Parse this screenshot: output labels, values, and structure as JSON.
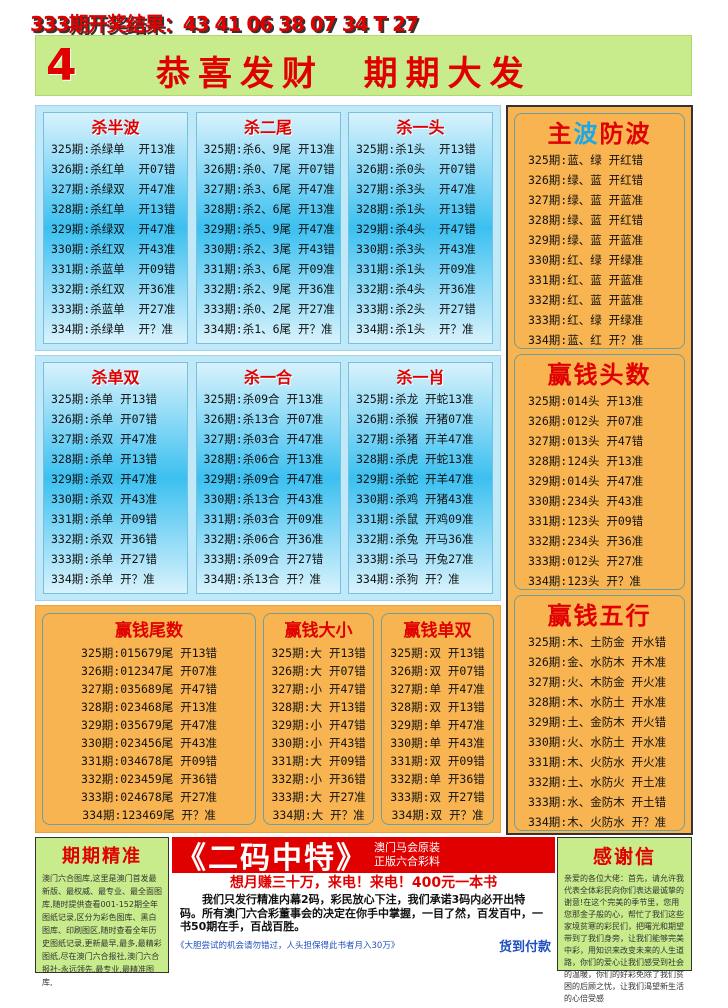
{
  "header": {
    "result_line": "333期开奖结果：43 41 06 38 07 34 T 27",
    "number": "4",
    "slogan": "恭喜发财  期期大发"
  },
  "blue_top": [
    {
      "title": "杀半波",
      "rows": [
        "325期:杀绿单  开13准",
        "326期:杀红单  开07错",
        "327期:杀绿双  开47准",
        "328期:杀红单  开13错",
        "329期:杀绿双  开47准",
        "330期:杀红双  开43准",
        "331期:杀蓝单  开09错",
        "332期:杀红双  开36准",
        "333期:杀蓝单  开27准",
        "334期:杀绿单  开？准"
      ]
    },
    {
      "title": "杀二尾",
      "rows": [
        "325期:杀6、9尾 开13准",
        "326期:杀0、7尾 开07错",
        "327期:杀3、6尾 开47准",
        "328期:杀2、6尾 开13准",
        "329期:杀5、9尾 开47准",
        "330期:杀2、3尾 开43错",
        "331期:杀3、6尾 开09准",
        "332期:杀2、9尾 开36准",
        "333期:杀0、2尾 开27准",
        "334期:杀1、6尾 开？准"
      ]
    },
    {
      "title": "杀一头",
      "rows": [
        "325期:杀1头  开13错",
        "326期:杀0头  开07错",
        "327期:杀3头  开47准",
        "328期:杀1头  开13错",
        "329期:杀4头  开47错",
        "330期:杀3头  开43准",
        "331期:杀1头  开09准",
        "332期:杀4头  开36准",
        "333期:杀2头  开27错",
        "334期:杀1头  开？准"
      ]
    }
  ],
  "blue_bottom": [
    {
      "title": "杀单双",
      "rows": [
        "325期:杀单 开13错",
        "326期:杀单 开07错",
        "327期:杀双 开47准",
        "328期:杀单 开13错",
        "329期:杀双 开47准",
        "330期:杀双 开43准",
        "331期:杀单 开09错",
        "332期:杀双 开36错",
        "333期:杀单 开27错",
        "334期:杀单 开？准"
      ]
    },
    {
      "title": "杀一合",
      "rows": [
        "325期:杀09合 开13准",
        "326期:杀13合 开07准",
        "327期:杀03合 开47准",
        "328期:杀06合 开13准",
        "329期:杀09合 开47准",
        "330期:杀13合 开43准",
        "331期:杀03合 开09准",
        "332期:杀06合 开36准",
        "333期:杀09合 开27错",
        "334期:杀13合 开？准"
      ]
    },
    {
      "title": "杀一肖",
      "rows": [
        "325期:杀龙 开蛇13准",
        "326期:杀猴 开猪07准",
        "327期:杀猪 开羊47准",
        "328期:杀虎 开蛇13准",
        "329期:杀蛇 开羊47准",
        "330期:杀鸡 开猪43准",
        "331期:杀鼠 开鸡09准",
        "332期:杀兔 开马36准",
        "333期:杀马 开兔27准",
        "334期:杀狗 开？准"
      ]
    }
  ],
  "orange": [
    {
      "title": "赢钱尾数",
      "rows": [
        "325期:015679尾 开13错",
        "326期:012347尾 开07准",
        "327期:035689尾 开47错",
        "328期:023468尾 开13准",
        "329期:035679尾 开47准",
        "330期:023456尾 开43准",
        "331期:034678尾 开09错",
        "332期:023459尾 开36错",
        "333期:024678尾 开27准",
        "334期:123469尾 开？准"
      ]
    },
    {
      "title": "赢钱大小",
      "rows": [
        "325期:大 开13错",
        "326期:大 开07错",
        "327期:小 开47错",
        "328期:大 开13错",
        "329期:小 开47错",
        "330期:小 开43错",
        "331期:大 开09错",
        "332期:小 开36错",
        "333期:大 开27准",
        "334期:大 开？准"
      ]
    },
    {
      "title": "赢钱单双",
      "rows": [
        "325期:双 开13错",
        "326期:双 开07错",
        "327期:单 开47准",
        "328期:双 开13错",
        "329期:单 开47准",
        "330期:单 开43准",
        "331期:双 开09错",
        "332期:单 开36错",
        "333期:双 开27错",
        "334期:双 开？准"
      ]
    }
  ],
  "right": [
    {
      "title_parts": [
        "主",
        "波",
        "防波"
      ],
      "title_colors": [
        "#e00000",
        "#1aa8e8",
        "#e00000"
      ],
      "rows": [
        "325期:蓝、绿 开红错",
        "326期:绿、蓝 开红错",
        "327期:绿、蓝 开蓝准",
        "328期:绿、蓝 开红错",
        "329期:绿、蓝 开蓝准",
        "330期:红、绿 开绿准",
        "331期:红、蓝 开蓝准",
        "332期:红、蓝 开蓝准",
        "333期:红、绿 开绿准",
        "334期:蓝、红 开？准"
      ]
    },
    {
      "title": "赢钱头数",
      "rows": [
        "325期:014头 开13准",
        "326期:012头 开07准",
        "327期:013头 开47错",
        "328期:124头 开13准",
        "329期:014头 开47准",
        "330期:234头 开43准",
        "331期:123头 开09错",
        "332期:234头 开36准",
        "333期:012头 开27准",
        "334期:123头 开？准"
      ]
    },
    {
      "title": "赢钱五行",
      "rows": [
        "325期:木、土防金 开水错",
        "326期:金、水防木 开木准",
        "327期:火、木防金 开火准",
        "328期:木、水防土 开水准",
        "329期:土、金防木 开火错",
        "330期:火、水防土 开水准",
        "331期:木、火防水 开火准",
        "332期:土、水防火 开土准",
        "333期:水、金防木 开土错",
        "334期:木、火防水 开？准"
      ]
    }
  ],
  "footer": {
    "left_title": "期期精准",
    "left_text": "澳门六合图库,这里是澳门首发最新版、最权威、最专业、最全面图库,随时提供查看001-152期全年图纸记录,区分为彩色图库、黑白图库、印刷图区,随时查看全年历史图纸记录,更新最早,最多,最精彩图纸,尽在澳门六合报社,澳门六合报社-永远领先,最专业,最精准图库,",
    "ad_title": "《二码中特》",
    "ad_side1": "澳门马会原装",
    "ad_side2": "正版六合彩料",
    "ad_sub": "想月赚三十万，来电！来电！400元一本书",
    "ad_body": "我们只发行精准内幕2码，彩民放心下注，我们承诺3码内必开出特码。所有澳门六合彩董事会的决定在你手中掌握，一目了然，百发百中，一书50期在手，百战百胜。",
    "ad_foot": "《大胆尝试的机会请勿错过，人头担保得此书者月入30万》",
    "ad_pay": "货到付款",
    "right_title": "感谢信",
    "right_text": "亲爱的各位大佬：首先，请允许我代表全体彩民向你们表达最诚挚的谢意!在这个完美的季节里，您用您那金子般的心，帮忙了我们这些家境贫寒的彩民们，把曙光和期望带到了我们身旁，让我们能够完美中彩，用知识来改变未来的人生道路，你们的爱心让我们感受到社会的温暖，你们的好彩免除了我们贫困的后顾之忧，让我们渴望新生活的心倍受感"
  }
}
